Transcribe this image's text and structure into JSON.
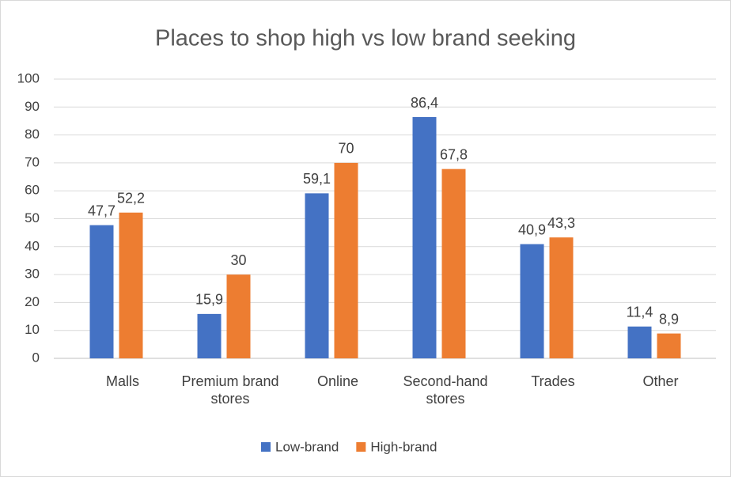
{
  "chart_data": {
    "type": "bar",
    "title": "Places to shop high vs low brand seeking",
    "categories": [
      "Malls",
      "Premium brand stores",
      "Online",
      "Second-hand stores",
      "Trades",
      "Other"
    ],
    "series": [
      {
        "name": "Low-brand",
        "color": "#4472c4",
        "values": [
          47.7,
          15.9,
          59.1,
          86.4,
          40.9,
          11.4
        ],
        "value_labels": [
          "47,7",
          "15,9",
          "59,1",
          "86,4",
          "40,9",
          "11,4"
        ]
      },
      {
        "name": "High-brand",
        "color": "#ed7d31",
        "values": [
          52.2,
          30,
          70,
          67.8,
          43.3,
          8.9
        ],
        "value_labels": [
          "52,2",
          "30",
          "70",
          "67,8",
          "43,3",
          "8,9"
        ]
      }
    ],
    "ylim": [
      0,
      100
    ],
    "yticks": [
      0,
      10,
      20,
      30,
      40,
      50,
      60,
      70,
      80,
      90,
      100
    ],
    "grid": true,
    "legend": "bottom"
  }
}
